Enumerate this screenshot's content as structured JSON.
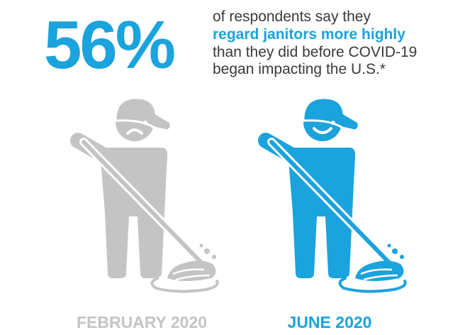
{
  "headline": {
    "stat": "56%",
    "lines": [
      "of respondents say they",
      "regard janitors more highly",
      "than they did before COVID-19",
      "began impacting the U.S.*"
    ]
  },
  "figures": [
    {
      "label": "FEBRUARY 2020",
      "color": "#c4c4c4"
    },
    {
      "label": "JUNE 2020",
      "color": "#1aa3dd"
    }
  ]
}
